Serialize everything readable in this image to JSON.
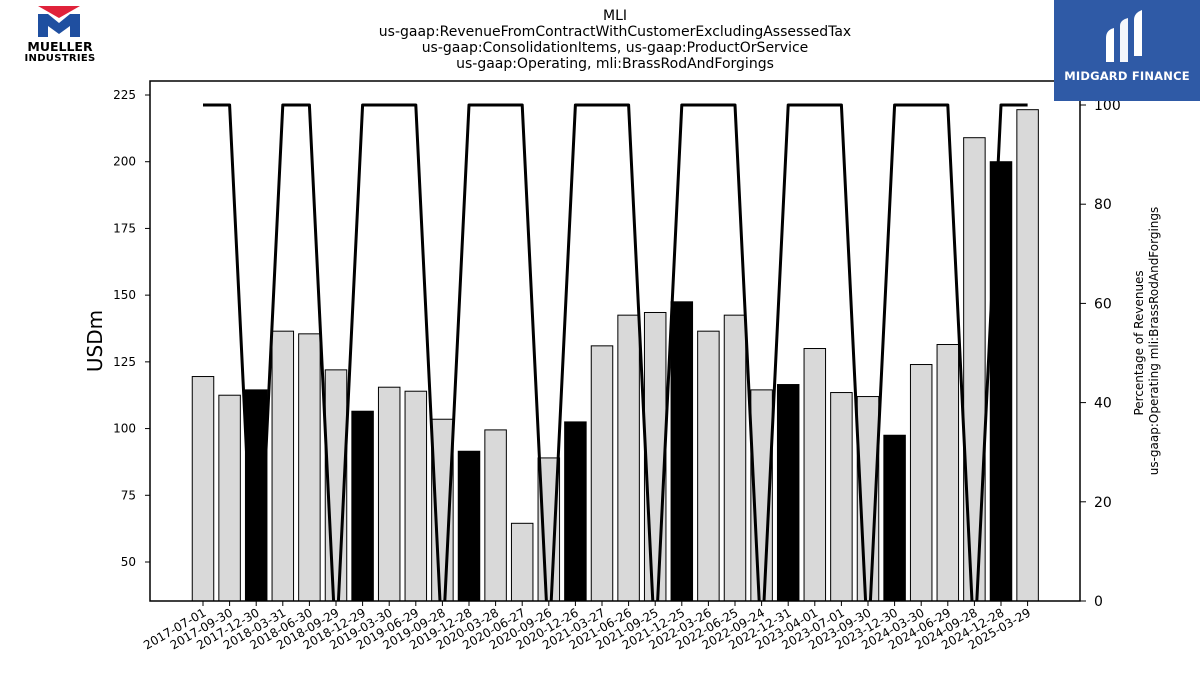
{
  "title_lines": [
    "MLI",
    "us-gaap:RevenueFromContractWithCustomerExcludingAssessedTax",
    "us-gaap:ConsolidationItems, us-gaap:ProductOrService",
    "us-gaap:Operating, mli:BrassRodAndForgings"
  ],
  "logos": {
    "left": {
      "line1": "MUELLER",
      "line2": "INDUSTRIES",
      "red": "#e0223a",
      "blue": "#1f4fa0"
    },
    "right": {
      "text": "MIDGARD FINANCE",
      "background": "#2f5aa6"
    }
  },
  "chart_data": {
    "type": "bar",
    "title": "MLI us-gaap:RevenueFromContractWithCustomerExcludingAssessedTax us-gaap:ConsolidationItems, us-gaap:ProductOrService us-gaap:Operating, mli:BrassRodAndForgings",
    "ylabel": "USDm",
    "y2label_lines": [
      "Percentage of Revenues",
      "us-gaap:Operating mli:BrassRodAndForgings"
    ],
    "ylim": [
      35,
      230
    ],
    "y2lim": [
      0,
      100
    ],
    "yticks": [
      50,
      75,
      100,
      125,
      150,
      175,
      200,
      225
    ],
    "y2ticks": [
      0,
      20,
      40,
      60,
      80,
      100
    ],
    "categories": [
      "2017-07-01",
      "2017-09-30",
      "2017-12-30",
      "2018-03-31",
      "2018-06-30",
      "2018-09-29",
      "2018-12-29",
      "2019-03-30",
      "2019-06-29",
      "2019-09-28",
      "2019-12-28",
      "2020-03-28",
      "2020-06-27",
      "2020-09-26",
      "2020-12-26",
      "2021-03-27",
      "2021-06-26",
      "2021-09-25",
      "2021-12-25",
      "2022-03-26",
      "2022-06-25",
      "2022-09-24",
      "2022-12-31",
      "2023-04-01",
      "2023-07-01",
      "2023-09-30",
      "2023-12-30",
      "2024-03-30",
      "2024-06-29",
      "2024-09-28",
      "2024-12-28",
      "2025-03-29"
    ],
    "series": [
      {
        "type": "bar",
        "values": [
          119.5,
          112.5,
          114.5,
          136.5,
          135.5,
          122,
          106.5,
          115.5,
          114,
          103.5,
          91.5,
          99.5,
          64.5,
          89,
          102.5,
          131,
          142.5,
          143.5,
          147.5,
          136.5,
          142.5,
          114.5,
          116.5,
          130,
          113.5,
          112,
          97.5,
          124,
          131.5,
          209,
          200,
          219.5
        ],
        "highlight": [
          false,
          false,
          true,
          false,
          false,
          false,
          true,
          false,
          false,
          false,
          true,
          false,
          false,
          false,
          true,
          false,
          false,
          false,
          true,
          false,
          false,
          false,
          true,
          false,
          false,
          false,
          true,
          false,
          false,
          false,
          true,
          false
        ],
        "fill": "#d9d9d9",
        "highlight_fill": "#000000"
      },
      {
        "type": "line",
        "axis": "y2",
        "values": [
          100,
          100,
          null,
          100,
          100,
          null,
          100,
          100,
          100,
          null,
          100,
          100,
          100,
          null,
          100,
          100,
          100,
          null,
          100,
          100,
          100,
          null,
          100,
          100,
          100,
          null,
          100,
          100,
          100,
          null,
          100,
          100
        ],
        "color": "#000000"
      }
    ]
  }
}
